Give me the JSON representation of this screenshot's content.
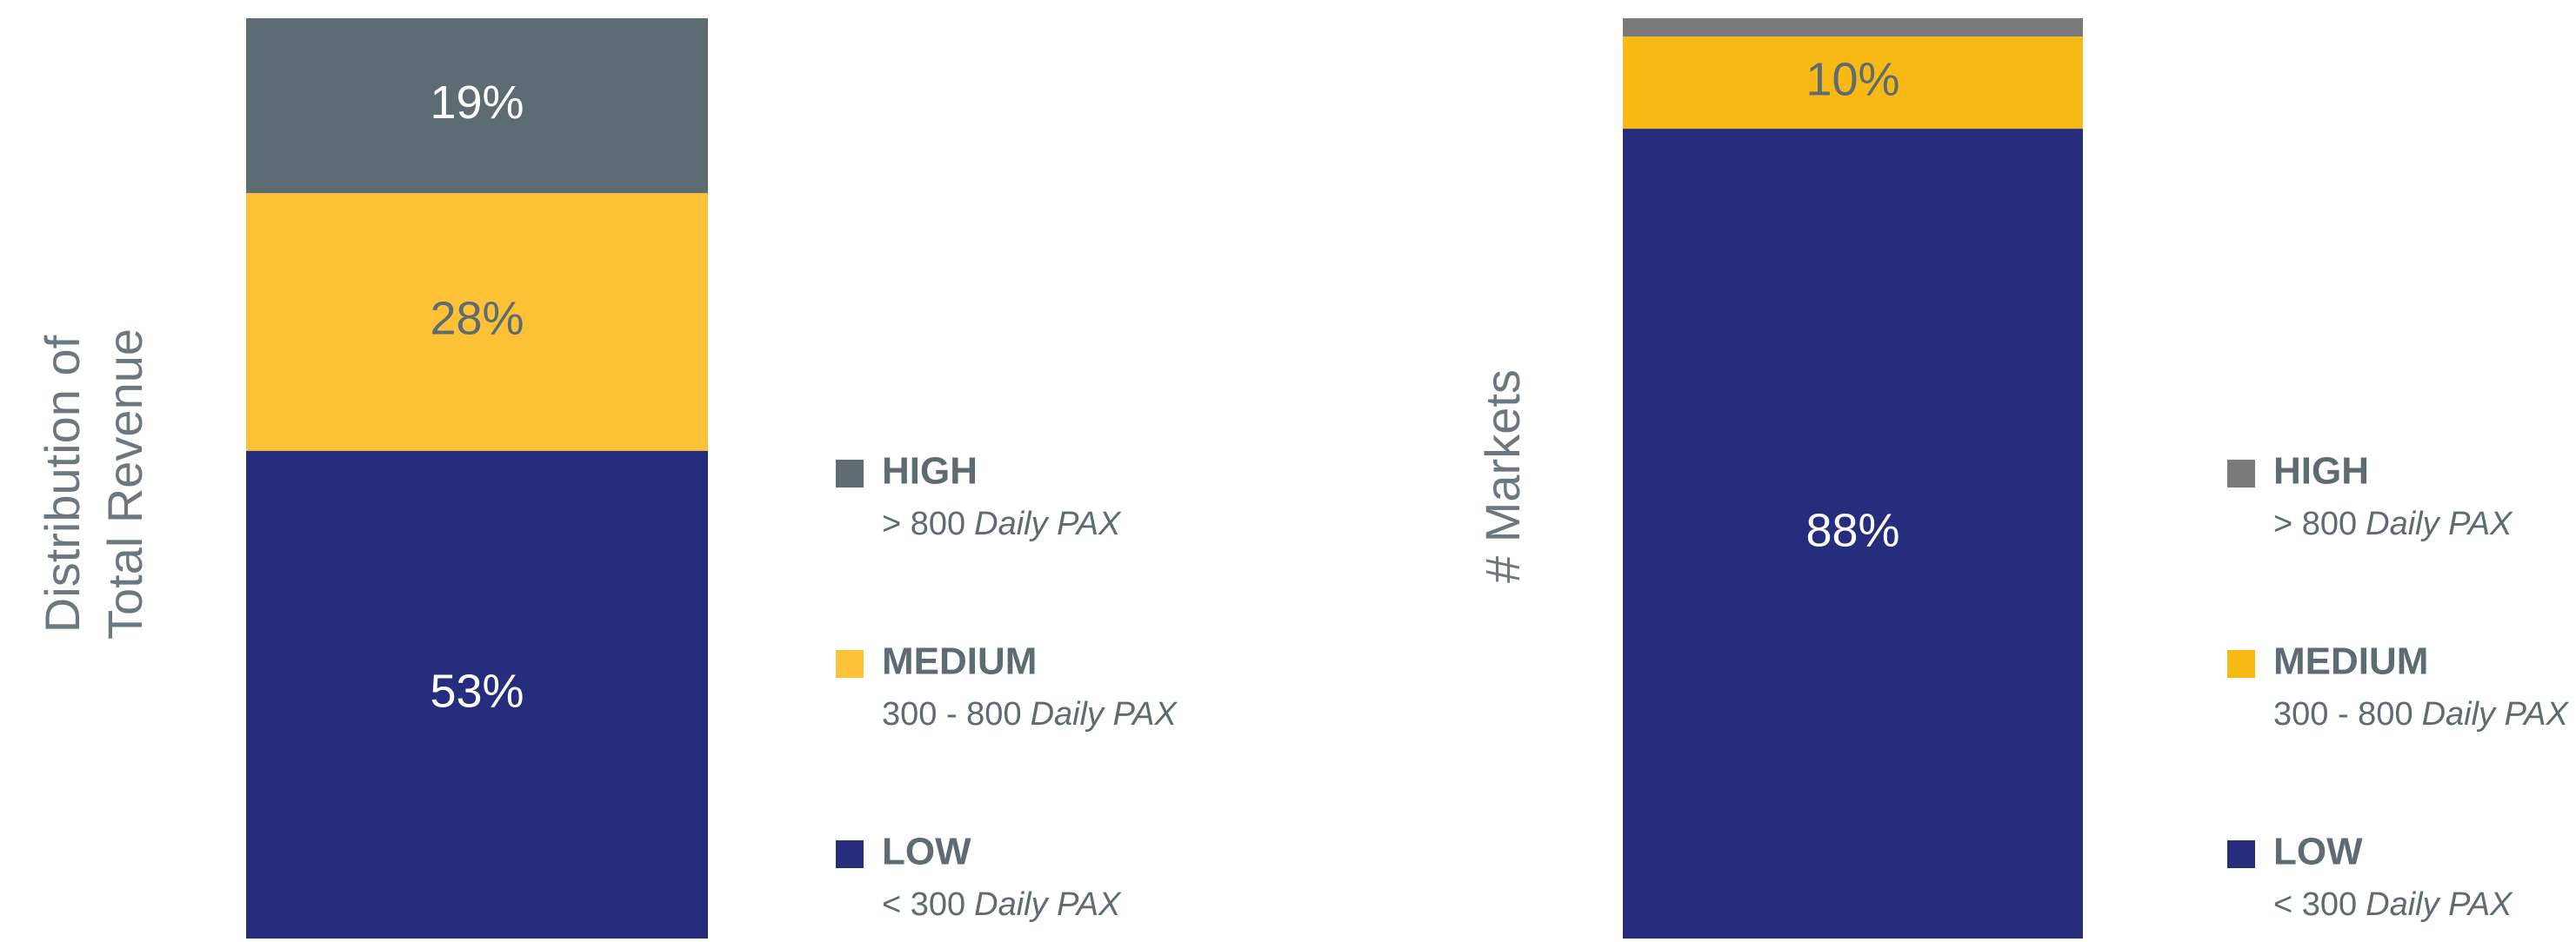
{
  "chart_data": [
    {
      "type": "bar",
      "stacked": true,
      "ylabel": [
        "Distribution of",
        "Total Revenue"
      ],
      "ylim": [
        0,
        100
      ],
      "series": [
        {
          "name": "LOW",
          "range": "< 300",
          "unit": "Daily PAX",
          "color": "#272d7d",
          "label_color": "#ffffff",
          "values": [
            53
          ],
          "value_labels": [
            "53%"
          ]
        },
        {
          "name": "MEDIUM",
          "range": "300 - 800",
          "unit": "Daily PAX",
          "color": "#fcc136",
          "label_color": "#5d6b73",
          "values": [
            28
          ],
          "value_labels": [
            "28%"
          ]
        },
        {
          "name": "HIGH",
          "range": "> 800",
          "unit": "Daily PAX",
          "color": "#5d6b73",
          "label_color": "#ffffff",
          "values": [
            19
          ],
          "value_labels": [
            "19%"
          ]
        }
      ]
    },
    {
      "type": "bar",
      "stacked": true,
      "ylabel": [
        "# Markets"
      ],
      "ylim": [
        0,
        100
      ],
      "series": [
        {
          "name": "LOW",
          "range": "< 300",
          "unit": "Daily PAX",
          "color": "#272d7d",
          "label_color": "#ffffff",
          "values": [
            88
          ],
          "value_labels": [
            "88%"
          ]
        },
        {
          "name": "MEDIUM",
          "range": "300 - 800",
          "unit": "Daily PAX",
          "color": "#f9b914",
          "label_color": "#5d6b73",
          "values": [
            10
          ],
          "value_labels": [
            "10%"
          ]
        },
        {
          "name": "HIGH",
          "range": "> 800",
          "unit": "Daily PAX",
          "color": "#7a7a7a",
          "label_color": "#ffffff",
          "values": [
            2
          ],
          "value_labels": [
            null
          ]
        }
      ]
    }
  ]
}
